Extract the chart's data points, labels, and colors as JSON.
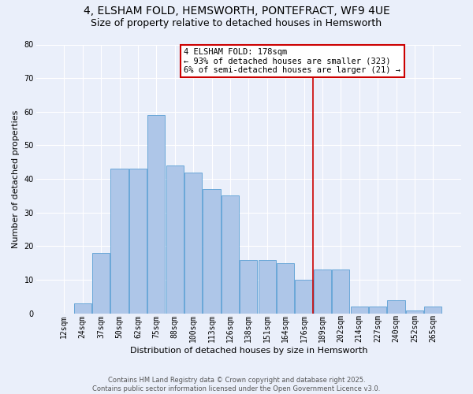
{
  "title_line1": "4, ELSHAM FOLD, HEMSWORTH, PONTEFRACT, WF9 4UE",
  "title_line2": "Size of property relative to detached houses in Hemsworth",
  "xlabel": "Distribution of detached houses by size in Hemsworth",
  "ylabel": "Number of detached properties",
  "bar_labels": [
    "12sqm",
    "24sqm",
    "37sqm",
    "50sqm",
    "62sqm",
    "75sqm",
    "88sqm",
    "100sqm",
    "113sqm",
    "126sqm",
    "138sqm",
    "151sqm",
    "164sqm",
    "176sqm",
    "189sqm",
    "202sqm",
    "214sqm",
    "227sqm",
    "240sqm",
    "252sqm",
    "265sqm"
  ],
  "bar_values": [
    0,
    3,
    18,
    43,
    43,
    59,
    44,
    42,
    37,
    35,
    16,
    16,
    15,
    10,
    13,
    13,
    2,
    2,
    4,
    1,
    2
  ],
  "bar_color": "#aec6e8",
  "bar_edge_color": "#5a9fd4",
  "background_color": "#eaeffa",
  "grid_color": "#ffffff",
  "vline_x": 13.5,
  "vline_color": "#cc0000",
  "annotation_text": "4 ELSHAM FOLD: 178sqm\n← 93% of detached houses are smaller (323)\n6% of semi-detached houses are larger (21) →",
  "annotation_box_color": "white",
  "annotation_box_edge_color": "#cc0000",
  "ylim": [
    0,
    80
  ],
  "yticks": [
    0,
    10,
    20,
    30,
    40,
    50,
    60,
    70,
    80
  ],
  "footer_line1": "Contains HM Land Registry data © Crown copyright and database right 2025.",
  "footer_line2": "Contains public sector information licensed under the Open Government Licence v3.0.",
  "title_fontsize": 10,
  "subtitle_fontsize": 9,
  "axis_label_fontsize": 8,
  "tick_fontsize": 7,
  "annotation_fontsize": 7.5,
  "footer_fontsize": 6
}
